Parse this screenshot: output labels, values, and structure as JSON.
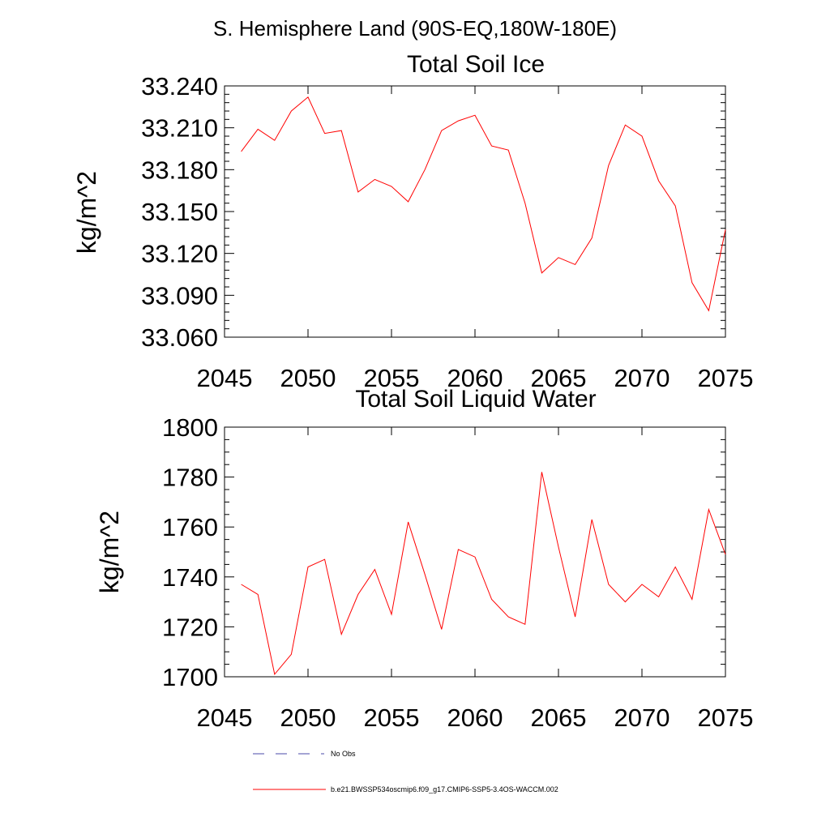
{
  "figure": {
    "main_title": "S. Hemisphere Land (90S-EQ,180W-180E)"
  },
  "colors": {
    "model_series": "#ff0000",
    "obs_series": "#4a4aa8",
    "axes": "#000000"
  },
  "legend": {
    "placement": "bottom",
    "entries": [
      {
        "label": "No Obs",
        "style": "dashed",
        "color": "#4a4aa8"
      },
      {
        "label": "b.e21.BWSSP534oscmip6.f09_g17.CMIP6-SSP5-3.4OS-WACCM.002",
        "style": "solid",
        "color": "#ff0000"
      }
    ]
  },
  "chart_data": [
    {
      "type": "line",
      "title": "Total Soil Ice",
      "xlabel": "",
      "ylabel": "kg/m^2",
      "xlim": [
        2045,
        2075
      ],
      "ylim": [
        33.06,
        33.24
      ],
      "x_ticks": [
        "2045",
        "2050",
        "2055",
        "2060",
        "2065",
        "2070",
        "2075"
      ],
      "y_ticks": [
        "33.060",
        "33.090",
        "33.120",
        "33.150",
        "33.180",
        "33.210",
        "33.240"
      ],
      "grid": false,
      "x": [
        2046,
        2047,
        2048,
        2049,
        2050,
        2051,
        2052,
        2053,
        2054,
        2055,
        2056,
        2057,
        2058,
        2059,
        2060,
        2061,
        2062,
        2063,
        2064,
        2065,
        2066,
        2067,
        2068,
        2069,
        2070,
        2071,
        2072,
        2073,
        2074,
        2075
      ],
      "series": [
        {
          "values": [
            33.193,
            33.209,
            33.201,
            33.222,
            33.232,
            33.206,
            33.208,
            33.164,
            33.173,
            33.168,
            33.157,
            33.18,
            33.208,
            33.215,
            33.219,
            33.197,
            33.194,
            33.156,
            33.106,
            33.117,
            33.112,
            33.131,
            33.183,
            33.212,
            33.204,
            33.172,
            33.154,
            33.099,
            33.079,
            33.137
          ]
        }
      ]
    },
    {
      "type": "line",
      "title": "Total Soil Liquid Water",
      "xlabel": "",
      "ylabel": "kg/m^2",
      "xlim": [
        2045,
        2075
      ],
      "ylim": [
        1700,
        1800
      ],
      "x_ticks": [
        "2045",
        "2050",
        "2055",
        "2060",
        "2065",
        "2070",
        "2075"
      ],
      "y_ticks": [
        "1700",
        "1720",
        "1740",
        "1760",
        "1780",
        "1800"
      ],
      "grid": false,
      "x": [
        2046,
        2047,
        2048,
        2049,
        2050,
        2051,
        2052,
        2053,
        2054,
        2055,
        2056,
        2057,
        2058,
        2059,
        2060,
        2061,
        2062,
        2063,
        2064,
        2065,
        2066,
        2067,
        2068,
        2069,
        2070,
        2071,
        2072,
        2073,
        2074,
        2075
      ],
      "series": [
        {
          "values": [
            1737,
            1733,
            1701,
            1709,
            1744,
            1747,
            1717,
            1733,
            1743,
            1725,
            1762,
            1741,
            1719,
            1751,
            1748,
            1731,
            1724,
            1721,
            1782,
            1752,
            1724,
            1763,
            1737,
            1730,
            1737,
            1732,
            1744,
            1731,
            1767,
            1749
          ]
        }
      ]
    }
  ]
}
